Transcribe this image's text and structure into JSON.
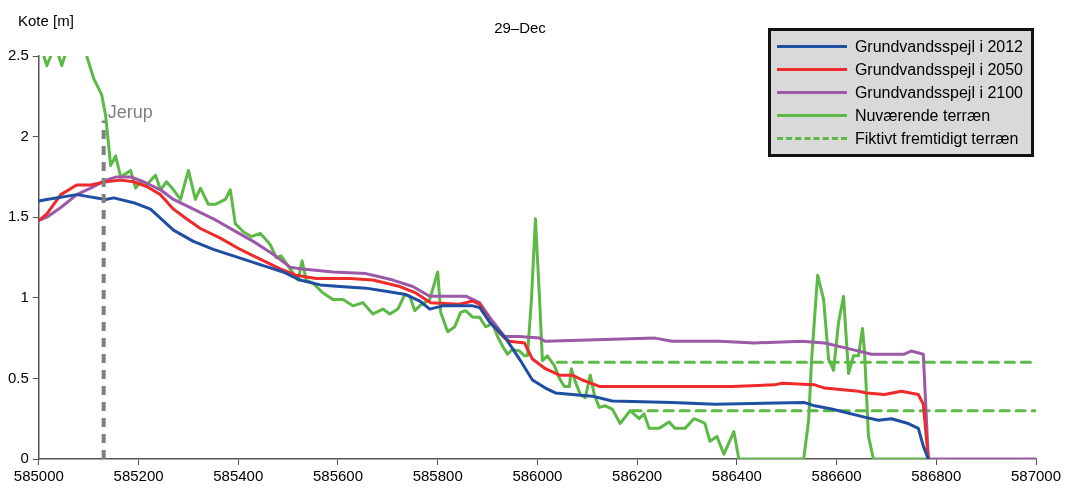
{
  "chart_data": {
    "type": "line",
    "title": "29–Dec",
    "ylabel": "Kote [m]",
    "xlim": [
      585000,
      587000
    ],
    "xticks": [
      585000,
      585200,
      585400,
      585600,
      585800,
      586000,
      586200,
      586400,
      586600,
      586800,
      587000
    ],
    "ylim": [
      0,
      2.5
    ],
    "yticks": [
      0,
      0.5,
      1,
      1.5,
      2,
      2.5
    ],
    "legend": "top right",
    "ref_lines": [
      {
        "axis": "x",
        "value": 585130,
        "label": "Jerup",
        "color": "#808080",
        "line_style": "dashed"
      }
    ],
    "series": [
      {
        "name": "Grundvandsspejl i 2012",
        "color": "#1f4fa3",
        "x": [
          585000,
          585016,
          585076,
          585134,
          585150,
          585190,
          585224,
          585270,
          585310,
          585350,
          585390,
          585450,
          585490,
          585524,
          585564,
          585604,
          585656,
          585696,
          585736,
          585764,
          585784,
          585810,
          585870,
          585884,
          585904,
          585936,
          585964,
          585990,
          586016,
          586036,
          586070,
          586110,
          586150,
          586270,
          586356,
          586536,
          586556,
          586590,
          586656,
          586684,
          586710,
          586744,
          586764,
          586774,
          586784
        ],
        "values": [
          1.6,
          1.61,
          1.64,
          1.61,
          1.62,
          1.59,
          1.55,
          1.42,
          1.35,
          1.3,
          1.26,
          1.2,
          1.16,
          1.11,
          1.08,
          1.07,
          1.06,
          1.04,
          1.02,
          0.98,
          0.93,
          0.95,
          0.95,
          0.94,
          0.85,
          0.75,
          0.62,
          0.49,
          0.44,
          0.41,
          0.4,
          0.39,
          0.36,
          0.35,
          0.34,
          0.35,
          0.33,
          0.31,
          0.26,
          0.24,
          0.25,
          0.22,
          0.19,
          0.08,
          0
        ]
      },
      {
        "name": "Grundvandsspejl i 2050",
        "color": "#ee2a2a",
        "x": [
          585000,
          585016,
          585044,
          585076,
          585104,
          585134,
          585164,
          585190,
          585216,
          585244,
          585270,
          585296,
          585324,
          585364,
          585404,
          585444,
          585484,
          585516,
          585556,
          585624,
          585670,
          585724,
          585756,
          585786,
          585844,
          585870,
          585884,
          585904,
          585934,
          585944,
          585974,
          585990,
          586016,
          586044,
          586070,
          586090,
          586124,
          586390,
          586476,
          586490,
          586556,
          586576,
          586644,
          586660,
          586696,
          586730,
          586764,
          586774,
          586784
        ],
        "values": [
          1.48,
          1.52,
          1.64,
          1.7,
          1.7,
          1.72,
          1.73,
          1.72,
          1.69,
          1.64,
          1.55,
          1.49,
          1.43,
          1.37,
          1.3,
          1.24,
          1.18,
          1.14,
          1.12,
          1.12,
          1.11,
          1.07,
          1.03,
          0.97,
          0.96,
          0.98,
          0.96,
          0.85,
          0.75,
          0.73,
          0.72,
          0.62,
          0.56,
          0.52,
          0.52,
          0.49,
          0.45,
          0.45,
          0.46,
          0.47,
          0.46,
          0.44,
          0.42,
          0.41,
          0.4,
          0.42,
          0.4,
          0.34,
          0
        ]
      },
      {
        "name": "Grundvandsspejl i 2100",
        "color": "#9b59a8",
        "x": [
          585000,
          585016,
          585044,
          585076,
          585104,
          585134,
          585156,
          585184,
          585210,
          585244,
          585270,
          585310,
          585350,
          585390,
          585430,
          585470,
          585504,
          585524,
          585590,
          585656,
          585670,
          585710,
          585750,
          585784,
          585856,
          585884,
          585904,
          585934,
          585964,
          586004,
          586016,
          586236,
          586270,
          586364,
          586436,
          586530,
          586576,
          586630,
          586670,
          586736,
          586750,
          586774,
          586784,
          587000
        ],
        "values": [
          1.48,
          1.5,
          1.56,
          1.64,
          1.68,
          1.73,
          1.75,
          1.75,
          1.72,
          1.67,
          1.61,
          1.55,
          1.49,
          1.42,
          1.35,
          1.27,
          1.19,
          1.18,
          1.16,
          1.15,
          1.14,
          1.11,
          1.07,
          1.01,
          1.01,
          0.97,
          0.88,
          0.76,
          0.76,
          0.75,
          0.73,
          0.75,
          0.73,
          0.73,
          0.72,
          0.73,
          0.72,
          0.68,
          0.65,
          0.65,
          0.67,
          0.65,
          0,
          0
        ]
      },
      {
        "name": "Nuværende terræn",
        "color": "#5cb946",
        "x": [
          585010,
          585016,
          585024,
          585030,
          585040,
          585046,
          585052,
          585070,
          585096,
          585110,
          585126,
          585134,
          585144,
          585154,
          585164,
          585184,
          585194,
          585204,
          585216,
          585234,
          585244,
          585256,
          585270,
          585284,
          585300,
          585314,
          585324,
          585340,
          585354,
          585374,
          585384,
          585394,
          585410,
          585426,
          585444,
          585464,
          585476,
          585486,
          585504,
          585520,
          585528,
          585536,
          585550,
          585570,
          585590,
          585610,
          585630,
          585650,
          585670,
          585690,
          585704,
          585720,
          585734,
          585744,
          585754,
          585764,
          585784,
          585800,
          585806,
          585820,
          585834,
          585846,
          585856,
          585870,
          585884,
          585896,
          585910,
          585920,
          585930,
          585940,
          585950,
          585964,
          585974,
          585980,
          585988,
          585996,
          586004,
          586010,
          586020,
          586034,
          586044,
          586054,
          586064,
          586068,
          586076,
          586086,
          586096,
          586106,
          586114,
          586124,
          586136,
          586150,
          586166,
          586186,
          586204,
          586214,
          586224,
          586244,
          586264,
          586276,
          586296,
          586314,
          586330,
          586336,
          586346,
          586360,
          586374,
          586394,
          586404,
          586534,
          586544,
          586550,
          586562,
          586574,
          586584,
          586594,
          586604,
          586614,
          586624,
          586634,
          586644,
          586652,
          586656,
          586664,
          586674,
          586780
        ],
        "values": [
          2.5,
          2.44,
          2.5,
          null,
          2.5,
          2.44,
          2.5,
          null,
          2.5,
          2.36,
          2.26,
          2.13,
          1.82,
          1.88,
          1.75,
          1.79,
          1.68,
          1.72,
          1.7,
          1.76,
          1.67,
          1.72,
          1.67,
          1.61,
          1.79,
          1.61,
          1.68,
          1.58,
          1.58,
          1.61,
          1.67,
          1.46,
          1.41,
          1.38,
          1.4,
          1.33,
          1.25,
          1.26,
          1.18,
          1.11,
          1.23,
          1.11,
          1.09,
          1.03,
          0.99,
          0.99,
          0.95,
          0.97,
          0.9,
          0.93,
          0.9,
          0.93,
          1.02,
          1.01,
          0.92,
          0.95,
          0.99,
          1.16,
          0.91,
          0.79,
          0.82,
          0.91,
          0.92,
          0.88,
          0.88,
          0.82,
          0.84,
          0.76,
          0.7,
          0.65,
          0.68,
          0.67,
          0.64,
          0.64,
          0.99,
          1.49,
          1.01,
          0.61,
          0.64,
          0.58,
          0.5,
          0.45,
          0.45,
          0.56,
          0.48,
          0.4,
          0.38,
          0.52,
          0.4,
          0.32,
          0.33,
          0.31,
          0.22,
          0.3,
          0.25,
          0.28,
          0.19,
          0.19,
          0.23,
          0.19,
          0.19,
          0.25,
          0.23,
          0.22,
          0.11,
          0.14,
          0.03,
          0.17,
          0,
          0,
          0.24,
          0.62,
          1.14,
          0.99,
          0.62,
          0.55,
          0.85,
          1.01,
          0.53,
          0.64,
          0.64,
          0.81,
          0.67,
          0.14,
          0,
          0
        ]
      },
      {
        "name": "Fiktivt fremtidigt terræn",
        "color": "#5cb946",
        "line_style": "dashed",
        "x": [
          586040,
          587000
        ],
        "values": [
          0.6,
          0.6
        ]
      },
      {
        "color": "#5cb946",
        "line_style": "dashed",
        "x": [
          586190,
          587000
        ],
        "values": [
          0.3,
          0.3
        ]
      }
    ]
  }
}
